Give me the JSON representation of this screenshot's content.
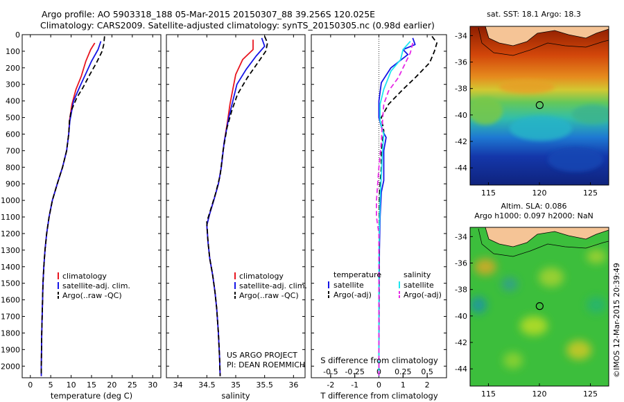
{
  "header": {
    "title_line1": "Argo profile: AO 5903318_188 05-Mar-2015 20150307_88 39.256S 120.025E",
    "title_line2": "Climatology: CARS2009. Satellite-adjusted climatology: synTS_20150305.nc (0.98d earlier)"
  },
  "colors": {
    "climatology": "#e8141e",
    "satellite": "#1414e6",
    "argo": "#000000",
    "sal_satellite": "#1ee6f0",
    "sal_argo": "#e628e6"
  },
  "depth_ticks": [
    0,
    100,
    200,
    300,
    400,
    500,
    600,
    700,
    800,
    900,
    1000,
    1100,
    1200,
    1300,
    1400,
    1500,
    1600,
    1700,
    1800,
    1900,
    2000
  ],
  "chart_data": [
    {
      "type": "line",
      "id": "temperature",
      "xlabel": "temperature (deg C)",
      "xlim": [
        -2,
        32
      ],
      "ylim": [
        2070,
        0
      ],
      "xticks": [
        0,
        5,
        10,
        15,
        20,
        25,
        30
      ],
      "legend": {
        "position": "lower-middle",
        "entries": [
          "climatology",
          "satellite-adj. clim.",
          "Argo(..raw -QC)"
        ]
      },
      "series": [
        {
          "name": "climatology",
          "style": "solid",
          "color": "#e8141e",
          "points": [
            [
              15.8,
              50
            ],
            [
              14.8,
              90
            ],
            [
              13.6,
              160
            ],
            [
              12.5,
              250
            ],
            [
              11.2,
              330
            ],
            [
              10.2,
              420
            ],
            [
              9.6,
              520
            ],
            [
              9.4,
              600
            ],
            [
              8.9,
              700
            ],
            [
              7.9,
              800
            ],
            [
              6.6,
              900
            ],
            [
              5.4,
              1000
            ],
            [
              4.6,
              1100
            ],
            [
              4.0,
              1200
            ],
            [
              3.6,
              1300
            ],
            [
              3.3,
              1400
            ],
            [
              3.1,
              1500
            ],
            [
              3.0,
              1600
            ],
            [
              2.9,
              1700
            ],
            [
              2.8,
              1800
            ],
            [
              2.75,
              1900
            ],
            [
              2.7,
              2000
            ],
            [
              2.7,
              2060
            ]
          ]
        },
        {
          "name": "satellite-adj. clim.",
          "style": "solid",
          "color": "#1414e6",
          "points": [
            [
              17.3,
              40
            ],
            [
              16.6,
              90
            ],
            [
              15.0,
              160
            ],
            [
              13.7,
              230
            ],
            [
              12.2,
              310
            ],
            [
              10.6,
              400
            ],
            [
              9.7,
              520
            ],
            [
              9.4,
              600
            ],
            [
              8.9,
              700
            ],
            [
              7.9,
              800
            ],
            [
              6.6,
              900
            ],
            [
              5.4,
              1000
            ],
            [
              4.6,
              1100
            ],
            [
              4.0,
              1200
            ],
            [
              3.6,
              1300
            ],
            [
              3.3,
              1400
            ],
            [
              3.1,
              1500
            ],
            [
              3.0,
              1600
            ],
            [
              2.9,
              1700
            ],
            [
              2.8,
              1800
            ],
            [
              2.75,
              1900
            ],
            [
              2.7,
              2000
            ],
            [
              2.7,
              2060
            ]
          ]
        },
        {
          "name": "Argo(..raw -QC)",
          "style": "dashed",
          "color": "#000000",
          "points": [
            [
              18.2,
              10
            ],
            [
              18.0,
              60
            ],
            [
              17.6,
              100
            ],
            [
              16.2,
              170
            ],
            [
              14.6,
              240
            ],
            [
              12.9,
              320
            ],
            [
              11.4,
              380
            ],
            [
              10.0,
              460
            ],
            [
              9.6,
              520
            ],
            [
              9.4,
              600
            ],
            [
              8.9,
              700
            ],
            [
              7.9,
              800
            ],
            [
              6.6,
              900
            ],
            [
              5.4,
              1000
            ],
            [
              4.6,
              1100
            ],
            [
              4.0,
              1200
            ],
            [
              3.6,
              1300
            ],
            [
              3.3,
              1400
            ],
            [
              3.1,
              1500
            ],
            [
              3.0,
              1600
            ],
            [
              2.9,
              1700
            ],
            [
              2.8,
              1800
            ],
            [
              2.75,
              1900
            ],
            [
              2.7,
              2000
            ],
            [
              2.7,
              2060
            ]
          ]
        }
      ]
    },
    {
      "type": "line",
      "id": "salinity",
      "xlabel": "salinity",
      "xlim": [
        33.8,
        36.2
      ],
      "ylim": [
        2070,
        0
      ],
      "xticks": [
        34,
        34.5,
        35,
        35.5,
        36
      ],
      "annotations": [
        "US ARGO PROJECT",
        "PI: DEAN ROEMMICH"
      ],
      "legend": {
        "position": "lower-right",
        "entries": [
          "climatology",
          "satellite-adj. clim.",
          "Argo(..raw -QC)"
        ]
      },
      "series": [
        {
          "name": "climatology",
          "style": "solid",
          "color": "#e8141e",
          "points": [
            [
              35.3,
              30
            ],
            [
              35.3,
              90
            ],
            [
              35.12,
              150
            ],
            [
              35.0,
              240
            ],
            [
              34.95,
              330
            ],
            [
              34.9,
              420
            ],
            [
              34.86,
              520
            ],
            [
              34.8,
              650
            ],
            [
              34.75,
              800
            ],
            [
              34.7,
              900
            ],
            [
              34.62,
              1000
            ],
            [
              34.55,
              1080
            ],
            [
              34.5,
              1150
            ],
            [
              34.52,
              1250
            ],
            [
              34.55,
              1350
            ],
            [
              34.6,
              1450
            ],
            [
              34.64,
              1550
            ],
            [
              34.67,
              1650
            ],
            [
              34.7,
              1800
            ],
            [
              34.72,
              1950
            ],
            [
              34.73,
              2060
            ]
          ]
        },
        {
          "name": "satellite-adj. clim.",
          "style": "solid",
          "color": "#1414e6",
          "points": [
            [
              35.45,
              20
            ],
            [
              35.5,
              70
            ],
            [
              35.35,
              130
            ],
            [
              35.18,
              210
            ],
            [
              35.02,
              300
            ],
            [
              34.95,
              400
            ],
            [
              34.88,
              500
            ],
            [
              34.8,
              650
            ],
            [
              34.75,
              800
            ],
            [
              34.7,
              900
            ],
            [
              34.62,
              1000
            ],
            [
              34.55,
              1080
            ],
            [
              34.5,
              1150
            ],
            [
              34.52,
              1250
            ],
            [
              34.55,
              1350
            ],
            [
              34.6,
              1450
            ],
            [
              34.64,
              1550
            ],
            [
              34.67,
              1650
            ],
            [
              34.7,
              1800
            ],
            [
              34.72,
              1950
            ],
            [
              34.73,
              2060
            ]
          ]
        },
        {
          "name": "Argo(..raw -QC)",
          "style": "dashed",
          "color": "#000000",
          "points": [
            [
              35.5,
              10
            ],
            [
              35.55,
              50
            ],
            [
              35.52,
              100
            ],
            [
              35.38,
              170
            ],
            [
              35.2,
              260
            ],
            [
              35.03,
              360
            ],
            [
              34.93,
              460
            ],
            [
              34.85,
              560
            ],
            [
              34.78,
              700
            ],
            [
              34.73,
              850
            ],
            [
              34.65,
              960
            ],
            [
              34.57,
              1050
            ],
            [
              34.5,
              1130
            ],
            [
              34.52,
              1250
            ],
            [
              34.55,
              1350
            ],
            [
              34.6,
              1450
            ],
            [
              34.64,
              1550
            ],
            [
              34.67,
              1650
            ],
            [
              34.7,
              1800
            ],
            [
              34.72,
              1950
            ],
            [
              34.73,
              2060
            ]
          ]
        }
      ]
    },
    {
      "type": "line",
      "id": "difference",
      "xlabel": "T difference from climatology",
      "top_xlabel": "S difference from climatology",
      "xlim": [
        -2.8,
        2.8
      ],
      "ylim": [
        2070,
        0
      ],
      "xticks": [
        -2,
        -1,
        0,
        1,
        2
      ],
      "top_xticks": [
        -0.5,
        -0.25,
        0,
        0.25,
        0.5
      ],
      "top_xtick_labels": [
        "-0.5",
        "-0.25",
        "0",
        "0.25",
        "0.5"
      ],
      "legend": {
        "position": "lower",
        "left_title": "temperature",
        "right_title": "salinity",
        "entries": [
          "satellite",
          "Argo(-adj)",
          "satellite",
          "Argo(-adj)"
        ]
      },
      "series": [
        {
          "name": "temperature satellite",
          "style": "solid",
          "color": "#1414e6",
          "points": [
            [
              1.4,
              20
            ],
            [
              1.5,
              60
            ],
            [
              1.0,
              90
            ],
            [
              1.2,
              120
            ],
            [
              0.5,
              200
            ],
            [
              0.1,
              290
            ],
            [
              0.0,
              400
            ],
            [
              0.0,
              500
            ],
            [
              0.15,
              580
            ],
            [
              0.3,
              620
            ],
            [
              0.2,
              700
            ],
            [
              0.2,
              800
            ],
            [
              0.2,
              880
            ],
            [
              0.1,
              950
            ],
            [
              0.05,
              1100
            ],
            [
              0.02,
              1300
            ],
            [
              0.01,
              1500
            ],
            [
              0.0,
              2060
            ]
          ]
        },
        {
          "name": "temperature Argo(-adj)",
          "style": "dashed",
          "color": "#000000",
          "points": [
            [
              2.2,
              10
            ],
            [
              2.4,
              50
            ],
            [
              2.3,
              100
            ],
            [
              2.1,
              170
            ],
            [
              1.5,
              260
            ],
            [
              1.0,
              330
            ],
            [
              0.4,
              420
            ],
            [
              0.1,
              500
            ],
            [
              0.2,
              580
            ],
            [
              0.1,
              700
            ],
            [
              0.1,
              800
            ],
            [
              0.05,
              900
            ],
            [
              0.02,
              1000
            ],
            [
              0.0,
              2060
            ]
          ]
        },
        {
          "name": "salinity satellite",
          "style": "solid",
          "color": "#1ee6f0",
          "points": [
            [
              1.3,
              40
            ],
            [
              1.0,
              90
            ],
            [
              0.9,
              150
            ],
            [
              0.5,
              220
            ],
            [
              0.2,
              330
            ],
            [
              0.05,
              420
            ],
            [
              0.05,
              520
            ],
            [
              0.2,
              600
            ],
            [
              0.15,
              700
            ],
            [
              0.1,
              850
            ],
            [
              0.05,
              1000
            ],
            [
              0.0,
              1300
            ],
            [
              0.0,
              2060
            ]
          ]
        },
        {
          "name": "salinity Argo(-adj)",
          "style": "dashed",
          "color": "#e628e6",
          "points": [
            [
              1.4,
              50
            ],
            [
              1.3,
              110
            ],
            [
              1.1,
              170
            ],
            [
              0.8,
              260
            ],
            [
              0.4,
              340
            ],
            [
              0.2,
              420
            ],
            [
              0.15,
              520
            ],
            [
              0.1,
              650
            ],
            [
              0.0,
              800
            ],
            [
              -0.1,
              1000
            ],
            [
              -0.1,
              1100
            ],
            [
              0.0,
              1200
            ],
            [
              0.0,
              2060
            ]
          ]
        }
      ]
    }
  ],
  "maps": {
    "lon_ticks": [
      115,
      120,
      125
    ],
    "lat_ticks": [
      -34,
      -36,
      -38,
      -40,
      -42,
      -44
    ],
    "marker": {
      "lon": 120.025,
      "lat": -39.256
    },
    "sst": {
      "title": "sat. SST: 18.1  Argo: 18.3"
    },
    "sla": {
      "title_line1": "Altim. SLA: 0.086",
      "title_line2": "Argo h1000: 0.097 h2000: NaN"
    },
    "credit": "©IMOS 12-Mar-2015 20:39:49"
  }
}
